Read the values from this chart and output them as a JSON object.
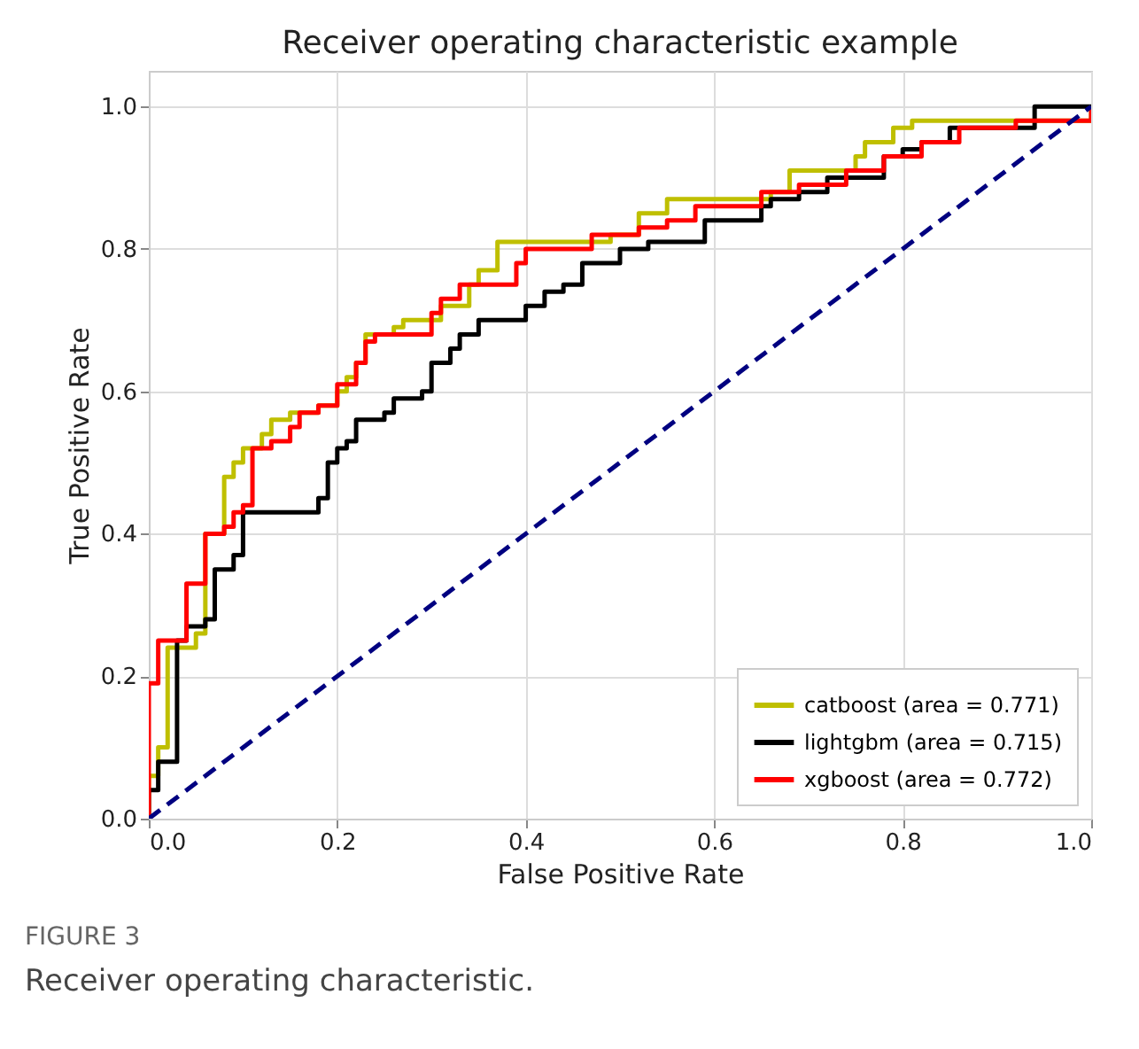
{
  "chart_data": {
    "type": "step",
    "title": "Receiver operating characteristic example",
    "xlabel": "False Positive Rate",
    "ylabel": "True Positive Rate",
    "annotations": [
      "FIGURE 3",
      "Receiver operating characteristic."
    ],
    "xlim": [
      0,
      1
    ],
    "ylim": [
      0,
      1.05
    ],
    "xticks": [
      {
        "value": 0,
        "label": "0.0"
      },
      {
        "value": 0.2,
        "label": "0.2"
      },
      {
        "value": 0.4,
        "label": "0.4"
      },
      {
        "value": 0.6,
        "label": "0.6"
      },
      {
        "value": 0.8,
        "label": "0.8"
      },
      {
        "value": 1,
        "label": "1.0"
      }
    ],
    "yticks": [
      {
        "value": 0,
        "label": "0.0"
      },
      {
        "value": 0.2,
        "label": "0.2"
      },
      {
        "value": 0.4,
        "label": "0.4"
      },
      {
        "value": 0.6,
        "label": "0.6"
      },
      {
        "value": 0.8,
        "label": "0.8"
      },
      {
        "value": 1,
        "label": "1.0"
      }
    ],
    "grid": true,
    "legend": "bottom right",
    "series": [
      {
        "name": "catboost (area = 0.771)",
        "color": "#bfbf00",
        "line_style": "solid",
        "x": [
          0,
          0,
          0.01,
          0.02,
          0.04,
          0.05,
          0.06,
          0.08,
          0.09,
          0.1,
          0.12,
          0.13,
          0.15,
          0.18,
          0.2,
          0.21,
          0.22,
          0.23,
          0.26,
          0.27,
          0.31,
          0.34,
          0.35,
          0.37,
          0.46,
          0.49,
          0.52,
          0.55,
          0.66,
          0.68,
          0.75,
          0.76,
          0.79,
          0.81,
          1,
          1
        ],
        "values": [
          0,
          0.06,
          0.1,
          0.24,
          0.24,
          0.26,
          0.4,
          0.48,
          0.5,
          0.52,
          0.54,
          0.56,
          0.57,
          0.58,
          0.6,
          0.62,
          0.64,
          0.68,
          0.69,
          0.7,
          0.72,
          0.75,
          0.77,
          0.81,
          0.81,
          0.82,
          0.85,
          0.87,
          0.88,
          0.91,
          0.93,
          0.95,
          0.97,
          0.98,
          0.98,
          1
        ]
      },
      {
        "name": "lightgbm (area = 0.715)",
        "color": "#000000",
        "line_style": "solid",
        "x": [
          0,
          0,
          0.01,
          0.03,
          0.03,
          0.04,
          0.06,
          0.07,
          0.09,
          0.1,
          0.1,
          0.17,
          0.18,
          0.19,
          0.2,
          0.21,
          0.22,
          0.25,
          0.26,
          0.29,
          0.3,
          0.32,
          0.33,
          0.35,
          0.39,
          0.4,
          0.42,
          0.44,
          0.46,
          0.48,
          0.5,
          0.53,
          0.59,
          0.61,
          0.65,
          0.66,
          0.69,
          0.72,
          0.76,
          0.78,
          0.8,
          0.82,
          0.85,
          0.94,
          0.94,
          1
        ],
        "values": [
          0,
          0.04,
          0.08,
          0.08,
          0.25,
          0.27,
          0.28,
          0.35,
          0.37,
          0.39,
          0.43,
          0.43,
          0.45,
          0.5,
          0.52,
          0.53,
          0.56,
          0.57,
          0.59,
          0.6,
          0.64,
          0.66,
          0.68,
          0.7,
          0.7,
          0.72,
          0.74,
          0.75,
          0.78,
          0.78,
          0.8,
          0.81,
          0.84,
          0.84,
          0.86,
          0.87,
          0.88,
          0.9,
          0.9,
          0.93,
          0.94,
          0.95,
          0.97,
          0.97,
          1,
          1
        ]
      },
      {
        "name": "xgboost (area = 0.772)",
        "color": "#ff0000",
        "line_style": "solid",
        "x": [
          0,
          0,
          0.01,
          0.04,
          0.04,
          0.06,
          0.08,
          0.09,
          0.1,
          0.11,
          0.13,
          0.15,
          0.16,
          0.18,
          0.2,
          0.22,
          0.23,
          0.24,
          0.3,
          0.31,
          0.33,
          0.39,
          0.4,
          0.47,
          0.52,
          0.55,
          0.58,
          0.65,
          0.69,
          0.74,
          0.78,
          0.82,
          0.86,
          0.92,
          1,
          1
        ],
        "values": [
          0,
          0.19,
          0.25,
          0.25,
          0.33,
          0.4,
          0.41,
          0.43,
          0.44,
          0.52,
          0.53,
          0.55,
          0.57,
          0.58,
          0.61,
          0.64,
          0.67,
          0.68,
          0.71,
          0.73,
          0.75,
          0.78,
          0.8,
          0.82,
          0.83,
          0.84,
          0.86,
          0.88,
          0.89,
          0.91,
          0.93,
          0.95,
          0.97,
          0.98,
          0.98,
          1
        ]
      },
      {
        "color": "#000080",
        "type": "line",
        "line_style": "dashed",
        "x": [
          0,
          1
        ],
        "values": [
          0,
          1
        ]
      }
    ]
  }
}
